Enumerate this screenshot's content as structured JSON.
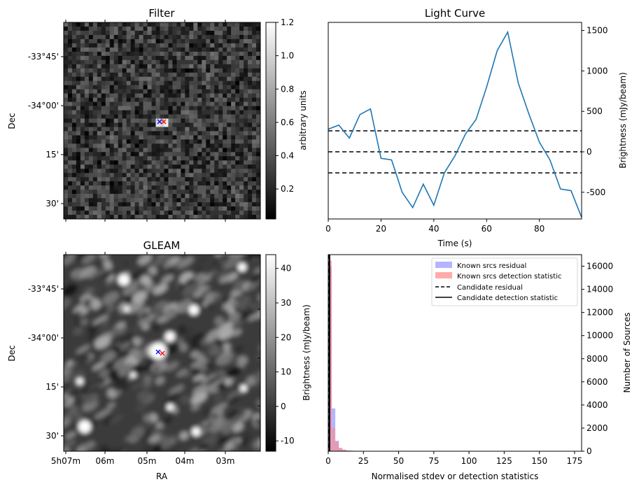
{
  "colors": {
    "line": "#1f77b4",
    "known_residual": "#7777ff",
    "known_detection": "#ff8888",
    "cand_x_blue": "#0000ff",
    "cand_x_red": "#ff0000",
    "black": "#000000"
  },
  "chart_data": [
    {
      "type": "heatmap",
      "title": "Filter",
      "ylabel": "Dec",
      "xlabel": "",
      "y_ticks": [
        "-33°45'",
        "-34°00'",
        "15'",
        "30'"
      ],
      "colorbar": {
        "label": "arbitrary units",
        "range": [
          0.02,
          1.2
        ],
        "ticks": [
          "0.2",
          "0.4",
          "0.6",
          "0.8",
          "1.0",
          "1.2"
        ]
      },
      "markers": [
        "x (blue)",
        "x (red)"
      ]
    },
    {
      "type": "line",
      "title": "Light Curve",
      "xlabel": "Time (s)",
      "ylabel": "Brightness (mJy/beam)",
      "xlim": [
        0,
        96
      ],
      "ylim": [
        -830,
        1600
      ],
      "x_ticks": [
        "0",
        "20",
        "40",
        "60",
        "80"
      ],
      "y_ticks": [
        "-500",
        "0",
        "500",
        "1000",
        "1500"
      ],
      "x": [
        0,
        4,
        8,
        12,
        16,
        20,
        24,
        28,
        32,
        36,
        40,
        44,
        48,
        52,
        56,
        60,
        64,
        68,
        72,
        76,
        80,
        84,
        88,
        92,
        96
      ],
      "values": [
        280,
        330,
        170,
        460,
        530,
        -80,
        -100,
        -500,
        -690,
        -400,
        -660,
        -260,
        -50,
        220,
        400,
        800,
        1250,
        1480,
        850,
        470,
        120,
        -100,
        -460,
        -480,
        -810
      ],
      "hlines": [
        260,
        0,
        -260
      ]
    },
    {
      "type": "heatmap",
      "title": "GLEAM",
      "ylabel": "Dec",
      "xlabel": "RA",
      "y_ticks": [
        "-33°45'",
        "-34°00'",
        "15'",
        "30'"
      ],
      "x_ticks": [
        "5h07m",
        "06m",
        "05m",
        "04m",
        "03m"
      ],
      "colorbar": {
        "label": "Brightness (mJy/beam)",
        "range": [
          -13,
          44
        ],
        "ticks": [
          "-10",
          "0",
          "10",
          "20",
          "30",
          "40"
        ]
      },
      "markers": [
        "x (blue)",
        "x (red)"
      ]
    },
    {
      "type": "bar",
      "title": "",
      "xlabel": "Normalised stdev or detection statistics",
      "ylabel": "Number of Sources",
      "xlim": [
        0,
        180
      ],
      "ylim": [
        0,
        17000
      ],
      "x_ticks": [
        "0",
        "25",
        "50",
        "75",
        "100",
        "125",
        "150",
        "175"
      ],
      "y_ticks": [
        "0",
        "2000",
        "4000",
        "6000",
        "8000",
        "10000",
        "12000",
        "14000",
        "16000"
      ],
      "bin_width": 2.5,
      "series": [
        {
          "name": "Known srcs residual",
          "bin_starts": [
            0,
            2.5,
            5,
            7.5,
            10,
            12.5,
            15,
            20
          ],
          "values": [
            16000,
            3700,
            900,
            250,
            120,
            60,
            40,
            20
          ]
        },
        {
          "name": "Known srcs detection statistic",
          "bin_starts": [
            0,
            2.5,
            5,
            7.5,
            10,
            12.5,
            15,
            50,
            75
          ],
          "values": [
            16500,
            2000,
            800,
            300,
            150,
            80,
            50,
            20,
            20
          ]
        }
      ],
      "legend": {
        "placement": "top-right",
        "entries": [
          "Known srcs residual",
          "Known srcs detection statistic",
          "Candidate residual",
          "Candidate detection statistic"
        ]
      },
      "candidate_residual_x": 0.6,
      "candidate_detection_x": 0.9
    }
  ]
}
